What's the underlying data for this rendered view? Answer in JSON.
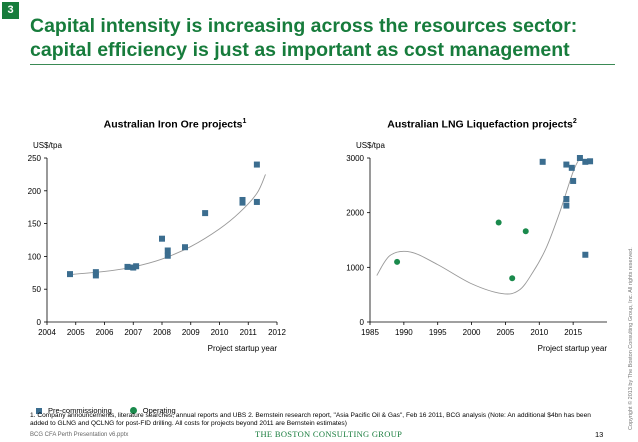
{
  "slide": {
    "number_badge": "3",
    "title": "Capital intensity is increasing across the resources sector: capital efficiency is just as important as cost management",
    "legend": {
      "pre_commissioning": "Pre-commissioning",
      "operating": "Operating"
    },
    "footnote": "1. Company announcements, literature searches, annual reports and UBS  2. Bernstein research report, \"Asia Pacific Oil & Gas\", Feb 16 2011, BCG analysis (Note: An additional $4bn has been added to GLNG and QCLNG for post-FID drilling. All costs for projects beyond 2011 are Bernstein estimates)",
    "footer_left": "BCG CFA Perth Presentation v6.pptx",
    "footer_logo": "THE BOSTON CONSULTING GROUP",
    "page_number": "13",
    "copyright": "Copyright © 2013 by The Boston Consulting Group, Inc. All rights reserved.",
    "colors": {
      "brand": "#177c3c",
      "pre_commissioning": "#3b6d8f",
      "operating": "#1a8a4c"
    }
  },
  "chart_data": [
    {
      "type": "scatter",
      "title": "Australian Iron Ore projects",
      "title_sup": "1",
      "ylabel": "US$/tpa",
      "xlabel": "Project startup year",
      "xlim": [
        2004,
        2012
      ],
      "ylim": [
        0,
        250
      ],
      "xticks": [
        2004,
        2005,
        2006,
        2007,
        2008,
        2009,
        2010,
        2011,
        2012
      ],
      "yticks": [
        0,
        50,
        100,
        150,
        200,
        250
      ],
      "series": [
        {
          "name": "Pre-commissioning",
          "marker": "square",
          "points": [
            [
              2004.8,
              73
            ],
            [
              2005.7,
              71
            ],
            [
              2005.7,
              76
            ],
            [
              2006.8,
              84
            ],
            [
              2007.0,
              83
            ],
            [
              2007.1,
              85
            ],
            [
              2008.0,
              127
            ],
            [
              2008.2,
              109
            ],
            [
              2008.2,
              101
            ],
            [
              2008.8,
              114
            ],
            [
              2009.5,
              166
            ],
            [
              2010.8,
              186
            ],
            [
              2010.8,
              182
            ],
            [
              2011.3,
              183
            ],
            [
              2011.3,
              240
            ]
          ]
        }
      ],
      "trendline": [
        [
          2004.7,
          72
        ],
        [
          2006,
          77
        ],
        [
          2007,
          84
        ],
        [
          2008,
          96
        ],
        [
          2009,
          115
        ],
        [
          2010,
          142
        ],
        [
          2010.7,
          167
        ],
        [
          2011.3,
          196
        ],
        [
          2011.6,
          225
        ]
      ]
    },
    {
      "type": "scatter",
      "title": "Australian LNG Liquefaction projects",
      "title_sup": "2",
      "ylabel": "US$/tpa",
      "xlabel": "Project startup year",
      "xlim": [
        1985,
        2020
      ],
      "ylim": [
        0,
        3000
      ],
      "xticks": [
        1985,
        1990,
        1995,
        2000,
        2005,
        2010,
        2015
      ],
      "yticks": [
        0,
        1000,
        2000,
        3000
      ],
      "series": [
        {
          "name": "Pre-commissioning",
          "marker": "square",
          "points": [
            [
              2010.5,
              2930
            ],
            [
              2014.0,
              2880
            ],
            [
              2014.8,
              2820
            ],
            [
              2015.0,
              2580
            ],
            [
              2014.0,
              2250
            ],
            [
              2014.0,
              2130
            ],
            [
              2016.0,
              3000
            ],
            [
              2016.8,
              2930
            ],
            [
              2017.5,
              2940
            ],
            [
              2016.8,
              1230
            ]
          ]
        },
        {
          "name": "Operating",
          "marker": "circle",
          "points": [
            [
              1989,
              1100
            ],
            [
              2004,
              1820
            ],
            [
              2006,
              800
            ],
            [
              2008,
              1660
            ]
          ]
        }
      ],
      "trendline": [
        [
          1986,
          850
        ],
        [
          1988,
          1220
        ],
        [
          1991,
          1280
        ],
        [
          1995,
          1050
        ],
        [
          2000,
          700
        ],
        [
          2004.5,
          520
        ],
        [
          2007,
          580
        ],
        [
          2009,
          900
        ],
        [
          2011,
          1350
        ],
        [
          2013,
          2000
        ],
        [
          2015,
          2750
        ],
        [
          2016,
          3000
        ]
      ]
    }
  ]
}
